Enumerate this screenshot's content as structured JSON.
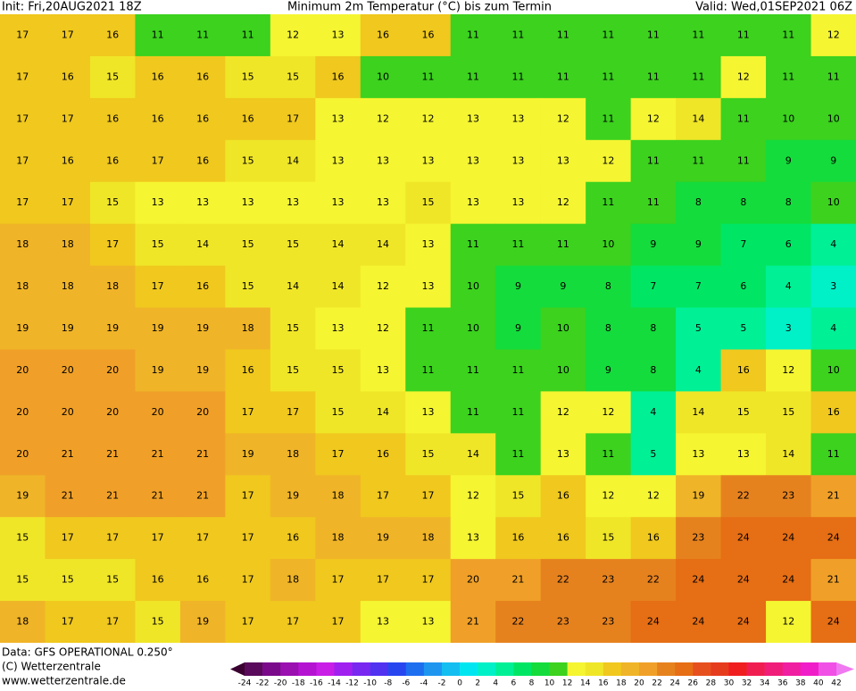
{
  "header": {
    "init": "Init: Fri,20AUG2021 18Z",
    "title": "Minimum 2m Temperatur (°C) bis zum Termin",
    "valid": "Valid: Wed,01SEP2021 06Z"
  },
  "footer": {
    "data": "Data: GFS OPERATIONAL 0.250°",
    "copyright": "(C) Wetterzentrale",
    "url": "www.wetterzentrale.de"
  },
  "map": {
    "grid": [
      [
        17,
        17,
        16,
        11,
        11,
        11,
        12,
        13,
        16,
        16,
        11,
        11,
        11,
        11,
        11,
        11,
        11,
        11,
        12
      ],
      [
        17,
        16,
        15,
        16,
        16,
        15,
        15,
        16,
        10,
        11,
        11,
        11,
        11,
        11,
        11,
        11,
        12,
        11,
        11
      ],
      [
        17,
        17,
        16,
        16,
        16,
        16,
        17,
        13,
        12,
        12,
        13,
        13,
        12,
        11,
        12,
        14,
        11,
        10,
        10
      ],
      [
        17,
        16,
        16,
        17,
        16,
        15,
        14,
        13,
        13,
        13,
        13,
        13,
        13,
        12,
        11,
        11,
        11,
        9,
        9
      ],
      [
        17,
        17,
        15,
        13,
        13,
        13,
        13,
        13,
        13,
        15,
        13,
        13,
        12,
        11,
        11,
        8,
        8,
        8,
        10
      ],
      [
        18,
        18,
        17,
        15,
        14,
        15,
        15,
        14,
        14,
        13,
        11,
        11,
        11,
        10,
        9,
        9,
        7,
        6,
        4
      ],
      [
        18,
        18,
        18,
        17,
        16,
        15,
        14,
        14,
        12,
        13,
        10,
        9,
        9,
        8,
        7,
        7,
        6,
        4,
        3
      ],
      [
        19,
        19,
        19,
        19,
        19,
        18,
        15,
        13,
        12,
        11,
        10,
        9,
        10,
        8,
        8,
        5,
        5,
        3,
        4
      ],
      [
        20,
        20,
        20,
        19,
        19,
        16,
        15,
        15,
        13,
        11,
        11,
        11,
        10,
        9,
        8,
        4,
        16,
        12,
        10
      ],
      [
        20,
        20,
        20,
        20,
        20,
        17,
        17,
        15,
        14,
        13,
        11,
        11,
        12,
        12,
        4,
        14,
        15,
        15,
        16
      ],
      [
        20,
        21,
        21,
        21,
        21,
        19,
        18,
        17,
        16,
        15,
        14,
        11,
        13,
        11,
        5,
        13,
        13,
        14,
        11
      ],
      [
        19,
        21,
        21,
        21,
        21,
        17,
        19,
        18,
        17,
        17,
        12,
        15,
        16,
        12,
        12,
        19,
        22,
        23,
        21
      ],
      [
        15,
        17,
        17,
        17,
        17,
        17,
        16,
        18,
        19,
        18,
        13,
        16,
        16,
        15,
        16,
        23,
        24,
        24,
        24
      ],
      [
        15,
        15,
        15,
        16,
        16,
        17,
        18,
        17,
        17,
        17,
        20,
        21,
        22,
        23,
        22,
        24,
        24,
        24,
        21
      ],
      [
        18,
        17,
        17,
        15,
        19,
        17,
        17,
        17,
        13,
        13,
        21,
        22,
        23,
        23,
        24,
        24,
        24,
        12,
        24
      ]
    ]
  },
  "scale": {
    "ticks": [
      -24,
      -22,
      -20,
      -18,
      -16,
      -14,
      -12,
      -10,
      -8,
      -6,
      -4,
      -2,
      0,
      2,
      4,
      6,
      8,
      10,
      12,
      14,
      16,
      18,
      20,
      22,
      24,
      26,
      28,
      30,
      32,
      34,
      36,
      38,
      40,
      42
    ],
    "colors": [
      "#3a0030",
      "#5a0a5a",
      "#7a0a8a",
      "#9a10b0",
      "#b414d2",
      "#c81ee6",
      "#a020f0",
      "#7828f0",
      "#5032f0",
      "#2846f0",
      "#1e6ef0",
      "#1e96f0",
      "#14bef0",
      "#00e6f0",
      "#00f0c8",
      "#00f096",
      "#00e664",
      "#14dc3c",
      "#3cd21e",
      "#f5f532",
      "#f0e628",
      "#f0c81e",
      "#f0b428",
      "#f0a028",
      "#e6821e",
      "#e66e14",
      "#e6501e",
      "#e63c1e",
      "#f01e1e",
      "#f01e50",
      "#f01e78",
      "#f01ea0",
      "#f01ec8",
      "#f050e6",
      "#f078f0"
    ]
  }
}
